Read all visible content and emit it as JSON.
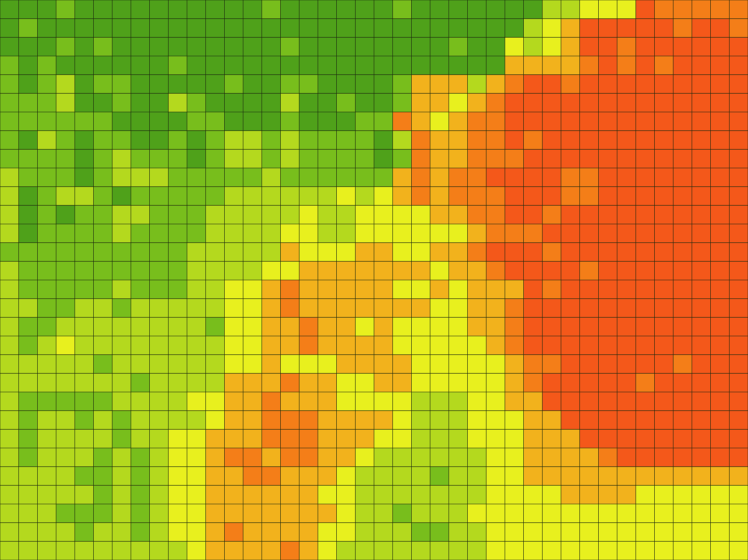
{
  "map": {
    "type": "heatmap-grid",
    "grid_lines": true,
    "grid_line_color": "#1e2a10",
    "rows": 30,
    "cols": 40,
    "palette": {
      "0": "#4fa11a",
      "1": "#78be1c",
      "2": "#b4d91e",
      "3": "#e8f01e",
      "4": "#f2b21c",
      "5": "#f47e18",
      "6": "#f4581a"
    },
    "row_levels": [
      "0001000000000010000001000000022333655555",
      "0100000000000000000000000000234666665665",
      "0001010000000001000000001003234665666666",
      "1010000001000000000000000004444565656666",
      "1012011000001001100001444245665666666666",
      "1112001002100002001001443456666666666666",
      "1111110000110001000115434556666666666666",
      "1021011001012212111102544556566666666666",
      "1111012111012212111101544555666666666666",
      "2111012221111121111114545566665566666666",
      "2012210111112222223234545556665566666666",
      "2010112211122222322333344556656666666666",
      "2011112111122223322333333455566666666666",
      "1111111111222224333443344566656666666666",
      "2111111111222233444444434456666566666666",
      "2111112111223345444443343444656666666666",
      "2211221222223345444444433445666666666666",
      "2112222222213344544343333445666666666666",
      "2123222222223344544443333345666666666666",
      "2222212222223343334444333334556666665666",
      "2222222122224445443344333334566666566666",
      "2111112222334454443333222334466666666666",
      "2122121222234455544443222333446666666666",
      "2122221223344455544433222333444666666666",
      "2122212123345545544322222233444456666666",
      "2222112123344554443222212233444444444444",
      "2222212123344444433222222233334444333333",
      "2221112123344444443221222333333333333333",
      "2222122123345444433222112233333333333333",
      "2222222222344445432222222233333333333333"
    ]
  }
}
